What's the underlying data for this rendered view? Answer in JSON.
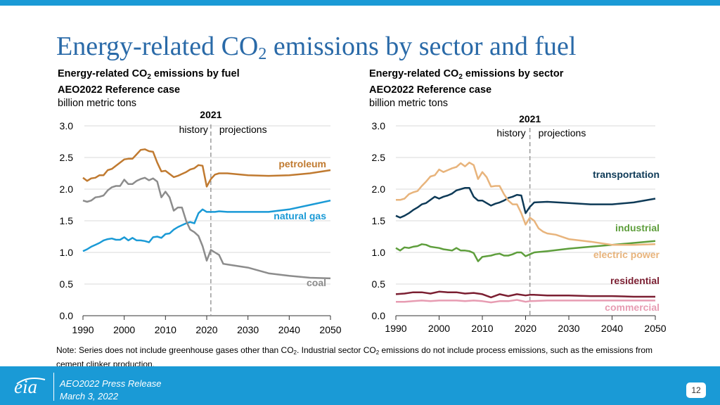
{
  "slide": {
    "title_main": "Energy-related CO",
    "title_sub": "2",
    "title_rest": " emissions by sector and fuel",
    "note_part1": "Note: Series does not include greenhouse gases other than CO",
    "note_sub1": "2",
    "note_part2": ". Industrial sector CO",
    "note_sub2": "2",
    "note_part3": " emissions do not include process emissions, such as the emissions from cement clinker production.",
    "footer_line1": "AEO2022 Press Release",
    "footer_line2": "March 3, 2022",
    "page_number": "12",
    "logo_text": "eia"
  },
  "left_header": {
    "line1_a": "Energy-related CO",
    "line1_sub": "2",
    "line1_b": " emissions by fuel",
    "line2": "AEO2022 Reference case",
    "line3": "billion metric tons"
  },
  "right_header": {
    "line1_a": "Energy-related CO",
    "line1_sub": "2",
    "line1_b": " emissions by sector",
    "line2": "AEO2022 Reference case",
    "line3": "billion metric tons"
  },
  "chart_data": [
    {
      "type": "line",
      "title": "Energy-related CO2 emissions by fuel",
      "ylabel": "billion metric tons",
      "xlim": [
        1990,
        2050
      ],
      "ylim": [
        0,
        3.0
      ],
      "xticks": [
        "1990",
        "2000",
        "2010",
        "2020",
        "2030",
        "2040",
        "2050"
      ],
      "yticks": [
        "0.0",
        "0.5",
        "1.0",
        "1.5",
        "2.0",
        "2.5",
        "3.0"
      ],
      "grid": true,
      "divider": {
        "year": 2021,
        "label": "2021",
        "left": "history",
        "right": "projections"
      },
      "series": [
        {
          "name": "petroleum",
          "color": "#c07a30",
          "x": [
            1990,
            1991,
            1992,
            1993,
            1994,
            1995,
            1996,
            1997,
            1998,
            1999,
            2000,
            2001,
            2002,
            2003,
            2004,
            2005,
            2006,
            2007,
            2008,
            2009,
            2010,
            2011,
            2012,
            2013,
            2014,
            2015,
            2016,
            2017,
            2018,
            2019,
            2020,
            2021,
            2022,
            2023,
            2025,
            2030,
            2035,
            2040,
            2045,
            2050
          ],
          "y": [
            2.18,
            2.13,
            2.17,
            2.18,
            2.22,
            2.22,
            2.3,
            2.32,
            2.37,
            2.42,
            2.47,
            2.48,
            2.48,
            2.55,
            2.62,
            2.63,
            2.6,
            2.59,
            2.42,
            2.28,
            2.29,
            2.24,
            2.19,
            2.21,
            2.24,
            2.27,
            2.31,
            2.33,
            2.38,
            2.37,
            2.04,
            2.16,
            2.23,
            2.25,
            2.25,
            2.22,
            2.21,
            2.22,
            2.25,
            2.3
          ]
        },
        {
          "name": "natural gas",
          "color": "#1a9ad6",
          "x": [
            1990,
            1991,
            1992,
            1993,
            1994,
            1995,
            1996,
            1997,
            1998,
            1999,
            2000,
            2001,
            2002,
            2003,
            2004,
            2005,
            2006,
            2007,
            2008,
            2009,
            2010,
            2011,
            2012,
            2013,
            2014,
            2015,
            2016,
            2017,
            2018,
            2019,
            2020,
            2021,
            2022,
            2023,
            2025,
            2030,
            2035,
            2040,
            2045,
            2050
          ],
          "y": [
            1.02,
            1.05,
            1.09,
            1.12,
            1.15,
            1.19,
            1.21,
            1.22,
            1.2,
            1.2,
            1.24,
            1.19,
            1.23,
            1.19,
            1.19,
            1.18,
            1.16,
            1.24,
            1.25,
            1.23,
            1.29,
            1.3,
            1.36,
            1.4,
            1.43,
            1.46,
            1.48,
            1.46,
            1.62,
            1.68,
            1.64,
            1.64,
            1.64,
            1.65,
            1.64,
            1.64,
            1.64,
            1.68,
            1.75,
            1.82
          ]
        },
        {
          "name": "coal",
          "color": "#8c8c8c",
          "x": [
            1990,
            1991,
            1992,
            1993,
            1994,
            1995,
            1996,
            1997,
            1998,
            1999,
            2000,
            2001,
            2002,
            2003,
            2004,
            2005,
            2006,
            2007,
            2008,
            2009,
            2010,
            2011,
            2012,
            2013,
            2014,
            2015,
            2016,
            2017,
            2018,
            2019,
            2020,
            2021,
            2022,
            2023,
            2024,
            2025,
            2030,
            2035,
            2040,
            2045,
            2050
          ],
          "y": [
            1.82,
            1.8,
            1.82,
            1.87,
            1.88,
            1.9,
            1.98,
            2.03,
            2.05,
            2.05,
            2.15,
            2.08,
            2.08,
            2.13,
            2.16,
            2.18,
            2.14,
            2.17,
            2.12,
            1.87,
            1.96,
            1.87,
            1.66,
            1.71,
            1.71,
            1.5,
            1.36,
            1.32,
            1.26,
            1.1,
            0.87,
            1.04,
            1.0,
            0.96,
            0.82,
            0.81,
            0.76,
            0.67,
            0.63,
            0.6,
            0.59
          ]
        }
      ],
      "labels": [
        {
          "text": "petroleum",
          "series": "petroleum"
        },
        {
          "text": "natural gas",
          "series": "natural gas"
        },
        {
          "text": "coal",
          "series": "coal"
        }
      ]
    },
    {
      "type": "line",
      "title": "Energy-related CO2 emissions by sector",
      "ylabel": "billion metric tons",
      "xlim": [
        1990,
        2050
      ],
      "ylim": [
        0,
        3.0
      ],
      "xticks": [
        "1990",
        "2000",
        "2010",
        "2020",
        "2030",
        "2040",
        "2050"
      ],
      "yticks": [
        "0.0",
        "0.5",
        "1.0",
        "1.5",
        "2.0",
        "2.5",
        "3.0"
      ],
      "grid": true,
      "divider": {
        "year": 2021,
        "label": "2021",
        "left": "history",
        "right": "projections"
      },
      "series": [
        {
          "name": "transportation",
          "color": "#0e3a57",
          "x": [
            1990,
            1991,
            1992,
            1993,
            1994,
            1995,
            1996,
            1997,
            1998,
            1999,
            2000,
            2001,
            2002,
            2003,
            2004,
            2005,
            2006,
            2007,
            2008,
            2009,
            2010,
            2011,
            2012,
            2013,
            2014,
            2015,
            2016,
            2017,
            2018,
            2019,
            2020,
            2021,
            2022,
            2025,
            2030,
            2035,
            2040,
            2045,
            2050
          ],
          "y": [
            1.58,
            1.55,
            1.58,
            1.62,
            1.67,
            1.71,
            1.76,
            1.78,
            1.83,
            1.88,
            1.85,
            1.88,
            1.9,
            1.93,
            1.98,
            2.0,
            2.02,
            2.02,
            1.88,
            1.82,
            1.82,
            1.78,
            1.74,
            1.77,
            1.79,
            1.82,
            1.86,
            1.88,
            1.91,
            1.9,
            1.62,
            1.72,
            1.79,
            1.8,
            1.78,
            1.76,
            1.76,
            1.79,
            1.85
          ]
        },
        {
          "name": "industrial",
          "color": "#5e9e3c",
          "x": [
            1990,
            1991,
            1992,
            1993,
            1994,
            1995,
            1996,
            1997,
            1998,
            1999,
            2000,
            2001,
            2002,
            2003,
            2004,
            2005,
            2006,
            2007,
            2008,
            2009,
            2010,
            2011,
            2012,
            2013,
            2014,
            2015,
            2016,
            2017,
            2018,
            2019,
            2020,
            2021,
            2022,
            2025,
            2030,
            2035,
            2040,
            2045,
            2050
          ],
          "y": [
            1.07,
            1.03,
            1.08,
            1.07,
            1.09,
            1.1,
            1.13,
            1.12,
            1.09,
            1.08,
            1.07,
            1.05,
            1.04,
            1.03,
            1.07,
            1.03,
            1.03,
            1.02,
            0.99,
            0.86,
            0.93,
            0.94,
            0.95,
            0.97,
            0.98,
            0.95,
            0.95,
            0.97,
            1.0,
            1.0,
            0.94,
            0.97,
            1.0,
            1.02,
            1.06,
            1.09,
            1.12,
            1.15,
            1.18
          ]
        },
        {
          "name": "electric power",
          "color": "#e8b47c",
          "x": [
            1990,
            1991,
            1992,
            1993,
            1994,
            1995,
            1996,
            1997,
            1998,
            1999,
            2000,
            2001,
            2002,
            2003,
            2004,
            2005,
            2006,
            2007,
            2008,
            2009,
            2010,
            2011,
            2012,
            2013,
            2014,
            2015,
            2016,
            2017,
            2018,
            2019,
            2020,
            2021,
            2022,
            2023,
            2024,
            2025,
            2027,
            2030,
            2035,
            2040,
            2045,
            2050
          ],
          "y": [
            1.83,
            1.83,
            1.85,
            1.92,
            1.95,
            1.97,
            2.05,
            2.12,
            2.2,
            2.22,
            2.31,
            2.27,
            2.3,
            2.33,
            2.35,
            2.41,
            2.36,
            2.42,
            2.38,
            2.16,
            2.27,
            2.19,
            2.04,
            2.05,
            2.05,
            1.92,
            1.82,
            1.76,
            1.76,
            1.62,
            1.44,
            1.55,
            1.5,
            1.38,
            1.33,
            1.3,
            1.28,
            1.21,
            1.17,
            1.12,
            1.12,
            1.13
          ]
        },
        {
          "name": "residential",
          "color": "#7b1f32",
          "x": [
            1990,
            1992,
            1994,
            1996,
            1998,
            2000,
            2002,
            2004,
            2006,
            2008,
            2010,
            2012,
            2014,
            2016,
            2018,
            2020,
            2021,
            2022,
            2025,
            2030,
            2035,
            2040,
            2045,
            2050
          ],
          "y": [
            0.34,
            0.35,
            0.37,
            0.37,
            0.35,
            0.38,
            0.37,
            0.37,
            0.35,
            0.36,
            0.34,
            0.29,
            0.34,
            0.31,
            0.34,
            0.32,
            0.33,
            0.33,
            0.32,
            0.32,
            0.31,
            0.31,
            0.3,
            0.3
          ]
        },
        {
          "name": "commercial",
          "color": "#e79cb2",
          "x": [
            1990,
            1992,
            1994,
            1996,
            1998,
            2000,
            2002,
            2004,
            2006,
            2008,
            2010,
            2012,
            2014,
            2016,
            2018,
            2020,
            2021,
            2025,
            2030,
            2035,
            2040,
            2045,
            2050
          ],
          "y": [
            0.22,
            0.22,
            0.23,
            0.24,
            0.23,
            0.24,
            0.24,
            0.24,
            0.23,
            0.24,
            0.23,
            0.21,
            0.23,
            0.23,
            0.25,
            0.22,
            0.23,
            0.24,
            0.24,
            0.24,
            0.24,
            0.24,
            0.24
          ]
        }
      ],
      "labels": [
        {
          "text": "transportation",
          "series": "transportation"
        },
        {
          "text": "industrial",
          "series": "industrial"
        },
        {
          "text": "electric power",
          "series": "electric power"
        },
        {
          "text": "residential",
          "series": "residential"
        },
        {
          "text": "commercial",
          "series": "commercial"
        }
      ]
    }
  ]
}
